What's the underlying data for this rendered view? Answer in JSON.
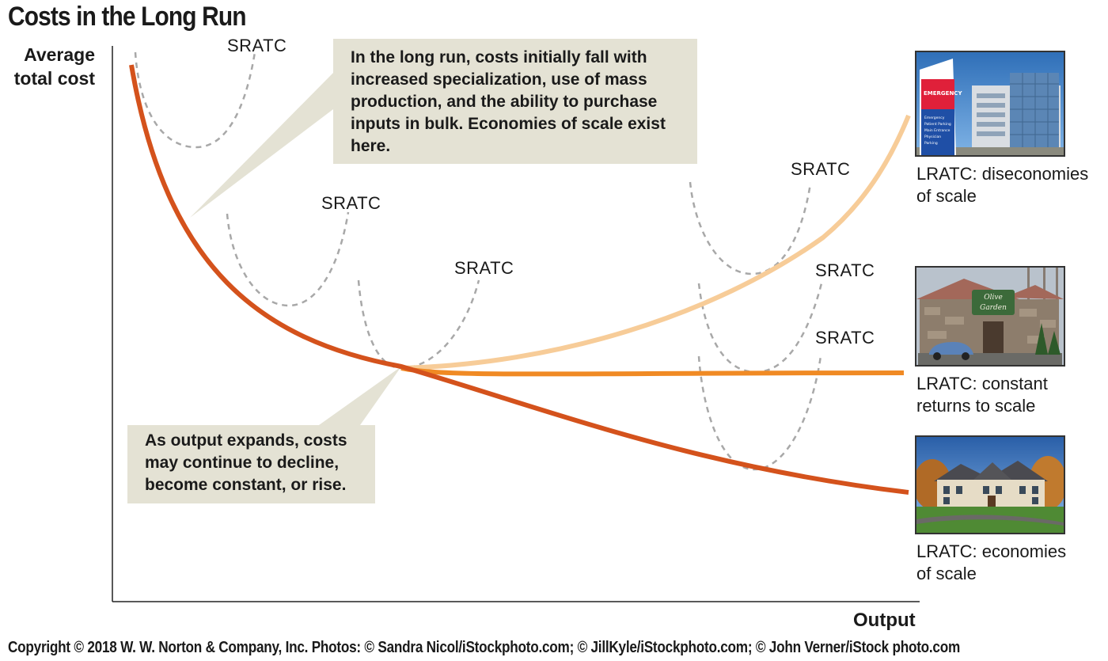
{
  "title": "Costs in the Long Run",
  "axes": {
    "y_label_line1": "Average",
    "y_label_line2": "total cost",
    "x_label": "Output"
  },
  "callouts": {
    "top_text": "In the long run, costs initially fall with increased specialization, use of mass production, and the ability to purchase inputs in bulk. Economies of scale exist here.",
    "bottom_text": "As output expands, costs may continue to decline, become constant, or rise."
  },
  "sratc_labels": [
    "SRATC",
    "SRATC",
    "SRATC",
    "SRATC",
    "SRATC",
    "SRATC"
  ],
  "captions": {
    "diseconomies_line1": "LRATC: diseconomies",
    "diseconomies_line2": "of scale",
    "constant_line1": "LRATC: constant",
    "constant_line2": "returns to scale",
    "economies_line1": "LRATC: economies",
    "economies_line2": "of scale"
  },
  "photos": {
    "hospital_sign": "EMERGENCY",
    "hospital_sign_lines": [
      "Emergency",
      "Patient Parking",
      "Main Entrance",
      "Physician",
      "Parking"
    ],
    "restaurant_sign_line1": "Olive",
    "restaurant_sign_line2": "Garden"
  },
  "copyright": "Copyright © 2018 W. W. Norton & Company, Inc. Photos: © Sandra Nicol/iStockphoto.com; © JillKyle/iStockphoto.com; © John Verner/iStock photo.com",
  "colors": {
    "lratc_economies": "#d4521c",
    "lratc_constant": "#f08a24",
    "lratc_diseconomies": "#f7cc98",
    "sratc": "#a8a8a8",
    "callout_bg": "#e4e2d4"
  }
}
